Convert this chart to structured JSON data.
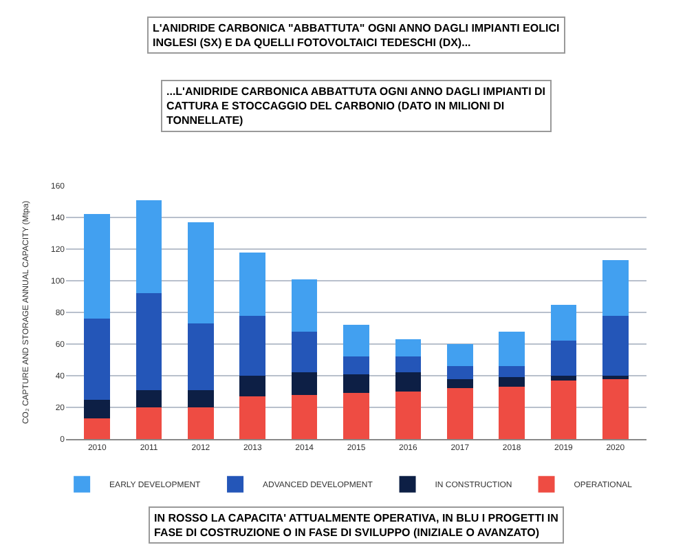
{
  "chart_data": {
    "type": "bar",
    "stacked": true,
    "annotations": [
      "L'ANIDRIDE CARBONICA \"ABBATTUTA\" OGNI ANNO DAGLI IMPIANTI EOLICI INGLESI (SX) E DA QUELLI FOTOVOLTAICI TEDESCHI (DX)...",
      "...L'ANIDRIDE CARBONICA ABBATTUTA OGNI ANNO DAGLI IMPIANTI DI CATTURA E STOCCAGGIO DEL CARBONIO (DATO IN MILIONI DI TONNELLATE)",
      "IN ROSSO LA CAPACITA' ATTUALMENTE OPERATIVA, IN BLU I PROGETTI IN FASE DI COSTRUZIONE O IN FASE DI SVILUPPO (INIZIALE O AVANZATO)"
    ],
    "ylabel": "CO₂ CAPTURE AND STORAGE ANNUAL CAPACITY (Mtpa)",
    "categories": [
      "2010",
      "2011",
      "2012",
      "2013",
      "2014",
      "2015",
      "2016",
      "2017",
      "2018",
      "2019",
      "2020"
    ],
    "series": [
      {
        "name": "OPERATIONAL",
        "color": "#ee4c43",
        "values": [
          13,
          20,
          20,
          27,
          28,
          29,
          30,
          32,
          33,
          37,
          38
        ]
      },
      {
        "name": "IN CONSTRUCTION",
        "color": "#0d1f45",
        "values": [
          12,
          11,
          11,
          13,
          14,
          12,
          12,
          6,
          6,
          3,
          2
        ]
      },
      {
        "name": "ADVANCED DEVELOPMENT",
        "color": "#2456b8",
        "values": [
          51,
          61,
          42,
          38,
          26,
          11,
          10,
          8,
          7,
          22,
          38
        ]
      },
      {
        "name": "EARLY DEVELOPMENT",
        "color": "#42a0f0",
        "values": [
          66,
          59,
          64,
          40,
          33,
          20,
          11,
          14,
          22,
          23,
          35
        ]
      }
    ],
    "ylim": [
      0,
      160
    ],
    "yticks": [
      0,
      20,
      40,
      60,
      80,
      100,
      120,
      140,
      160
    ],
    "grid": "y",
    "legend": "bottom"
  }
}
